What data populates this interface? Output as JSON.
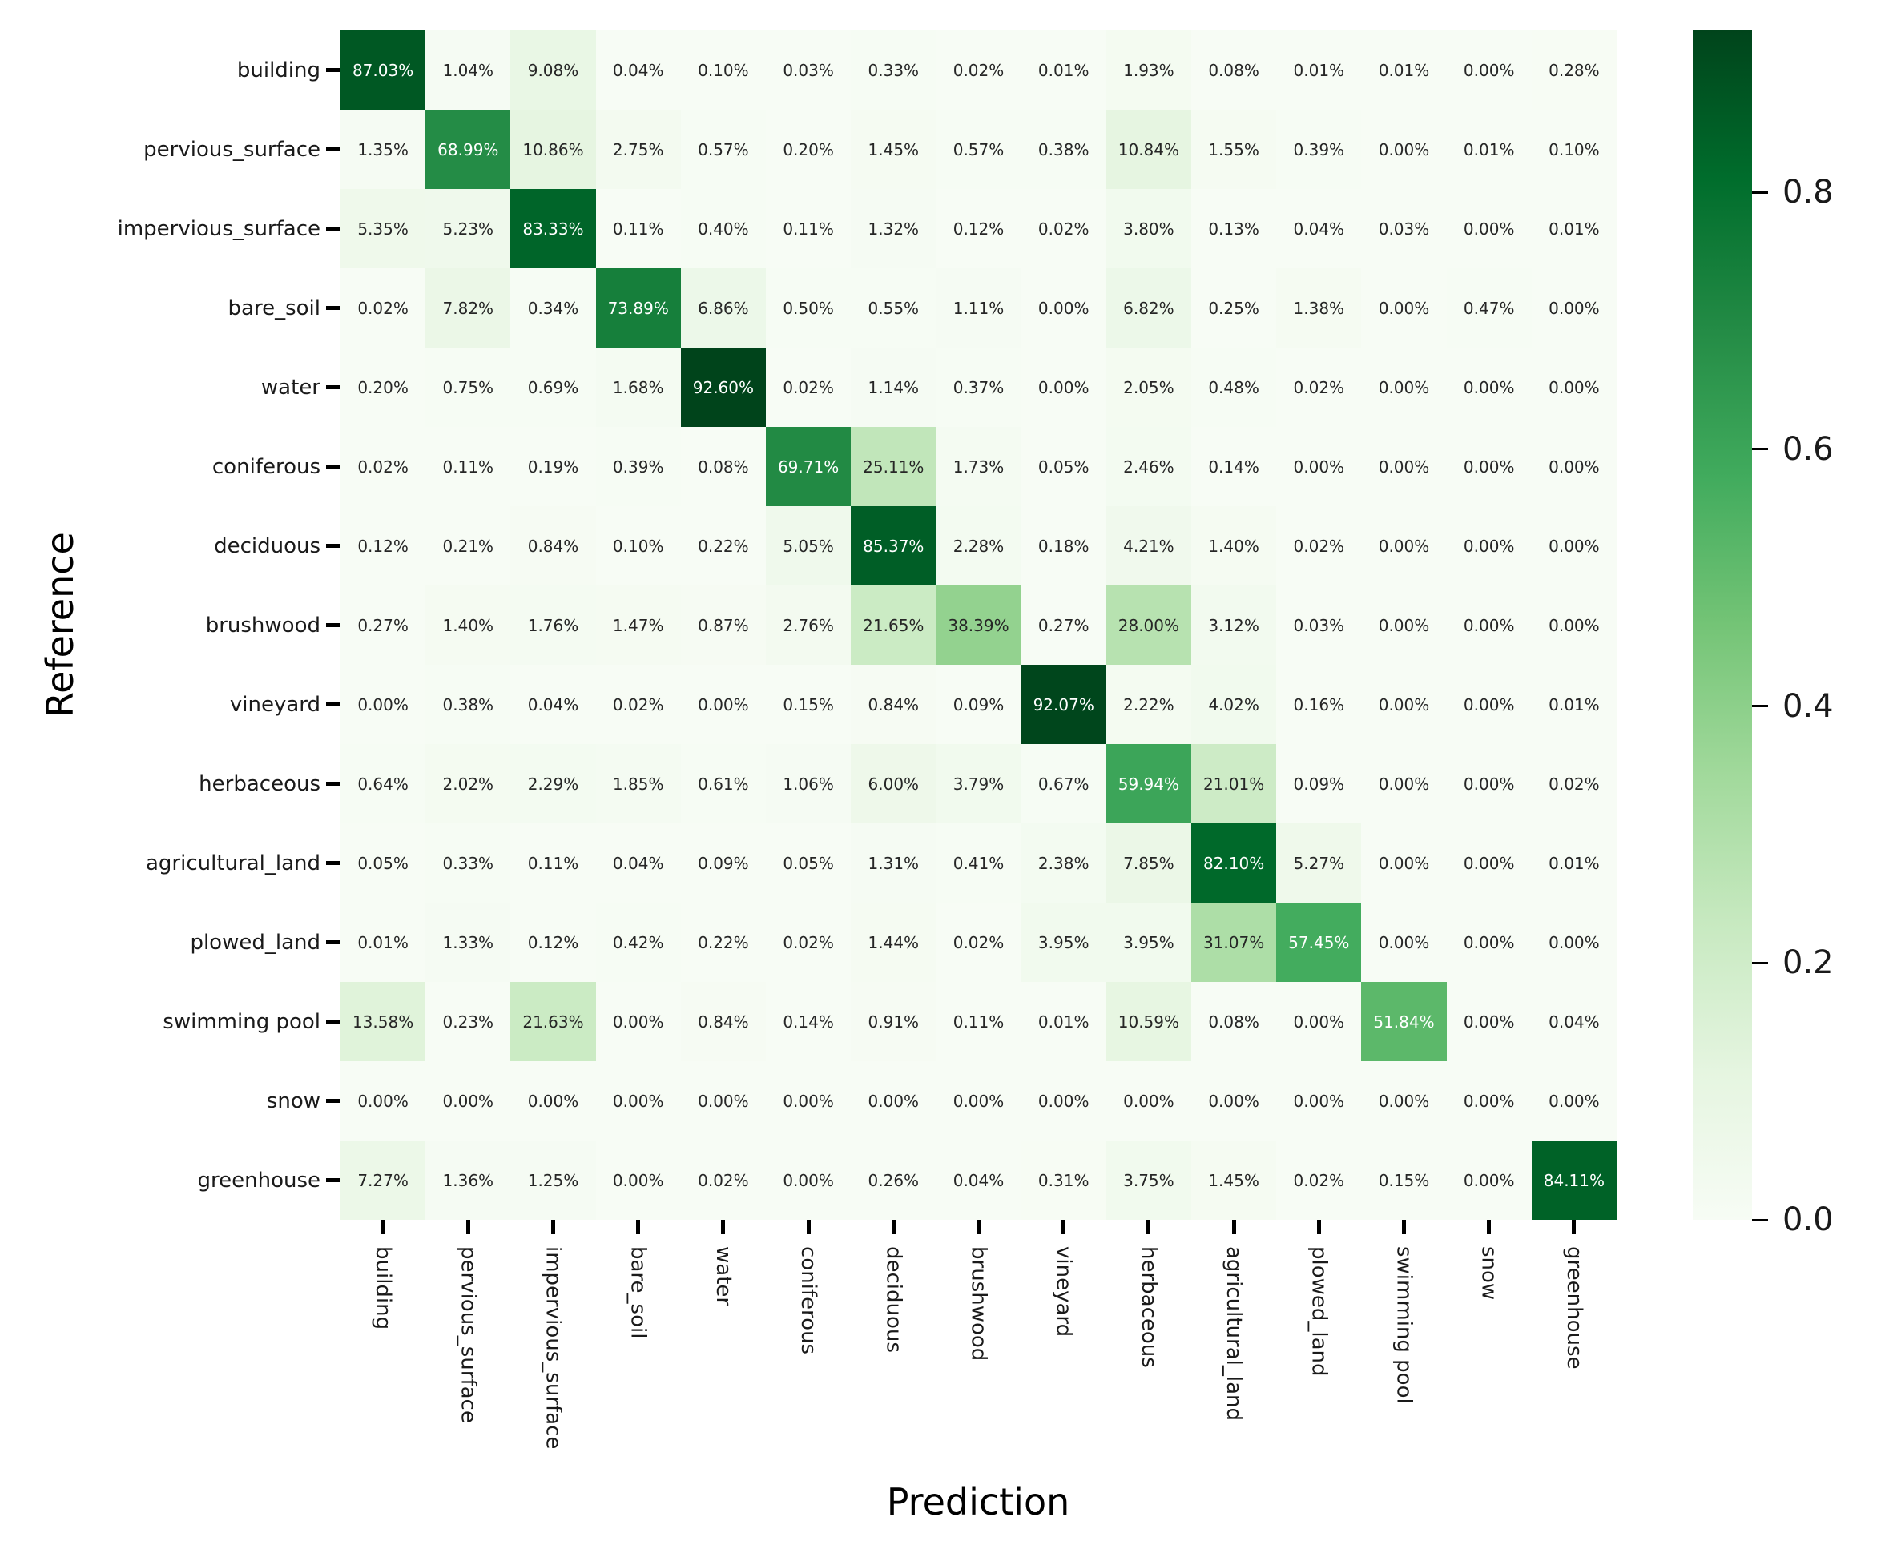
{
  "chart_data": {
    "type": "heatmap",
    "title": "",
    "xlabel": "Prediction",
    "ylabel": "Reference",
    "categories": [
      "building",
      "pervious_surface",
      "impervious_surface",
      "bare_soil",
      "water",
      "coniferous",
      "deciduous",
      "brushwood",
      "vineyard",
      "herbaceous",
      "agricultural_land",
      "plowed_land",
      "swimming pool",
      "snow",
      "greenhouse"
    ],
    "values_percent": [
      [
        87.03,
        1.04,
        9.08,
        0.04,
        0.1,
        0.03,
        0.33,
        0.02,
        0.01,
        1.93,
        0.08,
        0.01,
        0.01,
        0.0,
        0.28
      ],
      [
        1.35,
        68.99,
        10.86,
        2.75,
        0.57,
        0.2,
        1.45,
        0.57,
        0.38,
        10.84,
        1.55,
        0.39,
        0.0,
        0.01,
        0.1
      ],
      [
        5.35,
        5.23,
        83.33,
        0.11,
        0.4,
        0.11,
        1.32,
        0.12,
        0.02,
        3.8,
        0.13,
        0.04,
        0.03,
        0.0,
        0.01
      ],
      [
        0.02,
        7.82,
        0.34,
        73.89,
        6.86,
        0.5,
        0.55,
        1.11,
        0.0,
        6.82,
        0.25,
        1.38,
        0.0,
        0.47,
        0.0
      ],
      [
        0.2,
        0.75,
        0.69,
        1.68,
        92.6,
        0.02,
        1.14,
        0.37,
        0.0,
        2.05,
        0.48,
        0.02,
        0.0,
        0.0,
        0.0
      ],
      [
        0.02,
        0.11,
        0.19,
        0.39,
        0.08,
        69.71,
        25.11,
        1.73,
        0.05,
        2.46,
        0.14,
        0.0,
        0.0,
        0.0,
        0.0
      ],
      [
        0.12,
        0.21,
        0.84,
        0.1,
        0.22,
        5.05,
        85.37,
        2.28,
        0.18,
        4.21,
        1.4,
        0.02,
        0.0,
        0.0,
        0.0
      ],
      [
        0.27,
        1.4,
        1.76,
        1.47,
        0.87,
        2.76,
        21.65,
        38.39,
        0.27,
        28.0,
        3.12,
        0.03,
        0.0,
        0.0,
        0.0
      ],
      [
        0.0,
        0.38,
        0.04,
        0.02,
        0.0,
        0.15,
        0.84,
        0.09,
        92.07,
        2.22,
        4.02,
        0.16,
        0.0,
        0.0,
        0.01
      ],
      [
        0.64,
        2.02,
        2.29,
        1.85,
        0.61,
        1.06,
        6.0,
        3.79,
        0.67,
        59.94,
        21.01,
        0.09,
        0.0,
        0.0,
        0.02
      ],
      [
        0.05,
        0.33,
        0.11,
        0.04,
        0.09,
        0.05,
        1.31,
        0.41,
        2.38,
        7.85,
        82.1,
        5.27,
        0.0,
        0.0,
        0.01
      ],
      [
        0.01,
        1.33,
        0.12,
        0.42,
        0.22,
        0.02,
        1.44,
        0.02,
        3.95,
        3.95,
        31.07,
        57.45,
        0.0,
        0.0,
        0.0
      ],
      [
        13.58,
        0.23,
        21.63,
        0.0,
        0.84,
        0.14,
        0.91,
        0.11,
        0.01,
        10.59,
        0.08,
        0.0,
        51.84,
        0.0,
        0.04
      ],
      [
        0.0,
        0.0,
        0.0,
        0.0,
        0.0,
        0.0,
        0.0,
        0.0,
        0.0,
        0.0,
        0.0,
        0.0,
        0.0,
        0.0,
        0.0
      ],
      [
        7.27,
        1.36,
        1.25,
        0.0,
        0.02,
        0.0,
        0.26,
        0.04,
        0.31,
        3.75,
        1.45,
        0.02,
        0.15,
        0.0,
        84.11
      ]
    ],
    "value_suffix": "%",
    "vmin": 0.0,
    "vmax": 0.926,
    "colorbar_ticks": [
      0.0,
      0.2,
      0.4,
      0.6,
      0.8
    ],
    "colorbar_tick_labels": [
      "0.0",
      "0.2",
      "0.4",
      "0.6",
      "0.8"
    ],
    "colormap": {
      "name": "Greens",
      "anchors": [
        "#f7fcf5",
        "#e5f5e0",
        "#c7e9c0",
        "#a1d99b",
        "#74c476",
        "#41ab5d",
        "#238b45",
        "#006d2c",
        "#00441b"
      ]
    },
    "annotation_text_colors": {
      "light_cells": "#262626",
      "dark_cells": "#ffffff"
    },
    "grid": false,
    "legend_position": "colorbar-right",
    "xlim": null,
    "ylim": null
  }
}
